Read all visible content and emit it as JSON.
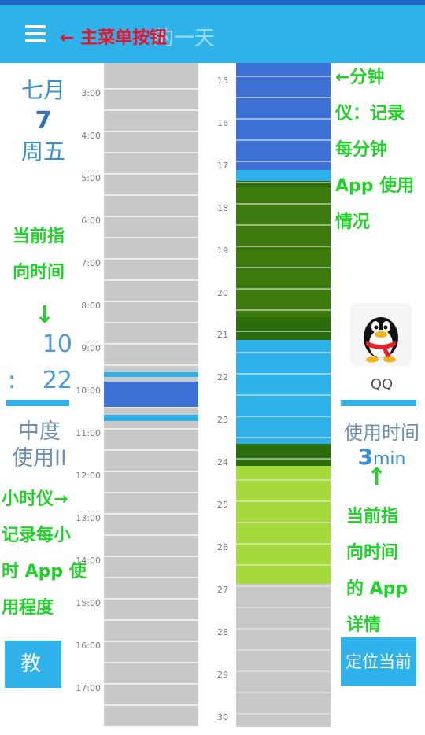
{
  "topbar": {
    "title": "的一天",
    "menu_annotation": "← 主菜单按钮"
  },
  "date": {
    "month": "七月",
    "day": "7",
    "weekday": "周五"
  },
  "current_time": {
    "hour": "10",
    "colon": ":",
    "minute": "22"
  },
  "usage_level_label": "中度\n使用II",
  "teach_button": "教 学",
  "hour_ticks": [
    "3:00",
    "4:00",
    "5:00",
    "6:00",
    "7:00",
    "8:00",
    "9:00",
    "10:00",
    "11:00",
    "12:00",
    "13:00",
    "14:00",
    "15:00",
    "16:00",
    "17:00"
  ],
  "minute_ticks": [
    "15",
    "16",
    "17",
    "18",
    "19",
    "20",
    "21",
    "22",
    "23",
    "24",
    "25",
    "26",
    "27",
    "28",
    "29",
    "30"
  ],
  "minute_usage": [
    {
      "from": "14:35",
      "to": "17:09",
      "color": "#3d71d3"
    },
    {
      "from": "17:09",
      "to": "17:35",
      "color": "#2fb2ea"
    },
    {
      "from": "17:35",
      "to": "17:50",
      "color": "#2b6d0a"
    },
    {
      "from": "17:50",
      "to": "20:57",
      "color": "#3d7a0e"
    },
    {
      "from": "20:57",
      "to": "21:10",
      "color": "#2b6d0a"
    },
    {
      "from": "21:10",
      "to": "23:56",
      "color": "#2fb2ea"
    },
    {
      "from": "23:56",
      "to": "24:08",
      "color": "#2b6d0a"
    },
    {
      "from": "24:08",
      "to": "26:85",
      "color": "#a6d93c"
    }
  ],
  "current_app": {
    "name": "QQ",
    "usage_label": "使用时间",
    "usage_value": "3",
    "usage_unit": "min"
  },
  "locate_button": "定位当前",
  "annotations": {
    "current_time_note": "当前指\n向时间",
    "current_time_arrow": "↓",
    "hour_meter_note": "小时仪→\n记录每小\n时 App 使\n用程度",
    "minute_meter_note": "←分钟\n仪：记录\n每分钟\nApp 使用\n情况",
    "app_arrow": "↑",
    "app_detail_note": "当前指\n向时间\n的 App\n详情"
  },
  "colors": {
    "accent": "#2fb2ea",
    "status_bar": "#1d63c8",
    "annotation_green": "#23d02c",
    "annotation_red": "#e8122a",
    "inactive": "#c8c8c8",
    "qq_app": "#3d71d3",
    "app_green": "#3d7a0e",
    "app_lime": "#a6d93c"
  }
}
